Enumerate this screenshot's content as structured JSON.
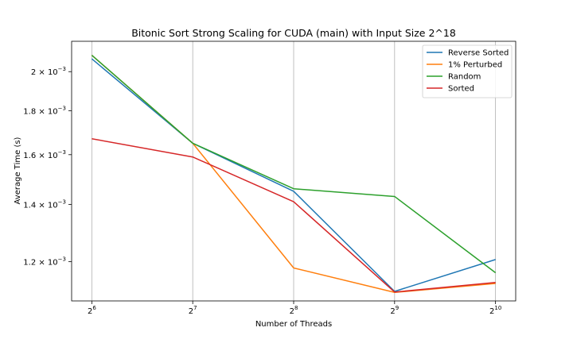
{
  "chart_data": {
    "type": "line",
    "title": "Bitonic Sort Strong Scaling for CUDA (main) with Input Size 2^18",
    "xlabel": "Number of Threads",
    "ylabel": "Average Time (s)",
    "x_scale": "log2",
    "y_scale": "log",
    "x": [
      64,
      128,
      256,
      512,
      1024
    ],
    "x_tick_labels": [
      {
        "base": "2",
        "exp": "6"
      },
      {
        "base": "2",
        "exp": "7"
      },
      {
        "base": "2",
        "exp": "8"
      },
      {
        "base": "2",
        "exp": "9"
      },
      {
        "base": "2",
        "exp": "10"
      }
    ],
    "y_ticks": [
      {
        "value": 0.0012,
        "mantissa": "1.2 × 10",
        "exp": "−3"
      },
      {
        "value": 0.0014,
        "mantissa": "1.4 × 10",
        "exp": "−3"
      },
      {
        "value": 0.0016,
        "mantissa": "1.6 × 10",
        "exp": "−3"
      },
      {
        "value": 0.0018,
        "mantissa": "1.8 × 10",
        "exp": "−3"
      },
      {
        "value": 0.002,
        "mantissa": "2 × 10",
        "exp": "−3"
      }
    ],
    "ylim": [
      0.00108,
      0.00217
    ],
    "xlim_exp": [
      5.8,
      10.2
    ],
    "grid": "vertical",
    "legend_position": "top-right",
    "series": [
      {
        "name": "Reverse Sorted",
        "color": "#1f77b4",
        "values": [
          0.00207,
          0.00165,
          0.00145,
          0.001108,
          0.001207
        ]
      },
      {
        "name": "1% Perturbed",
        "color": "#ff7f0e",
        "values": [
          0.00209,
          0.00165,
          0.00118,
          0.001105,
          0.001132
        ]
      },
      {
        "name": "Random",
        "color": "#2ca02c",
        "values": [
          0.00209,
          0.00165,
          0.00146,
          0.00143,
          0.001165
        ]
      },
      {
        "name": "Sorted",
        "color": "#d62728",
        "values": [
          0.00167,
          0.00159,
          0.00141,
          0.001106,
          0.001135
        ]
      }
    ]
  }
}
